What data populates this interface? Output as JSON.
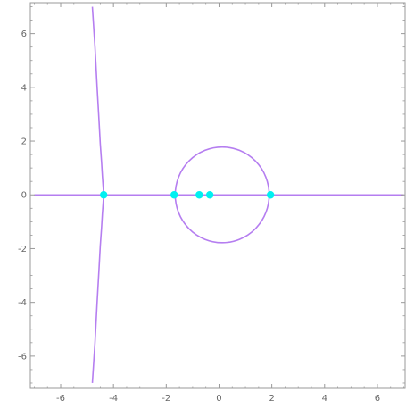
{
  "chart_data": {
    "type": "line",
    "title": "",
    "xlabel": "",
    "ylabel": "",
    "xlim": [
      -7.15,
      7.05
    ],
    "ylim": [
      -7.2,
      7.15
    ],
    "grid": false,
    "frame": true,
    "x_ticks": [
      -6,
      -4,
      -2,
      0,
      2,
      4,
      6
    ],
    "y_ticks": [
      -6,
      -4,
      -2,
      0,
      2,
      4,
      6
    ],
    "x_tick_labels": [
      "-6",
      "-4",
      "-2",
      "0",
      "2",
      "4",
      "6"
    ],
    "y_tick_labels": [
      "-6",
      "-4",
      "-2",
      "0",
      "2",
      "4",
      "6"
    ],
    "curve_color": "#b57ef0",
    "point_color": "#00f0f0",
    "series": [
      {
        "kind": "curve",
        "x": [
          -4.8,
          -4.7,
          -4.62,
          -4.55,
          -4.5,
          -4.45,
          -4.42,
          -4.39,
          -4.37
        ],
        "y": [
          7.0,
          5.5,
          4.0,
          2.8,
          1.9,
          1.2,
          0.7,
          0.3,
          0.0
        ]
      },
      {
        "kind": "curve",
        "x": [
          -4.37,
          -4.39,
          -4.42,
          -4.45,
          -4.5,
          -4.55,
          -4.62,
          -4.7,
          -4.8
        ],
        "y": [
          0.0,
          -0.3,
          -0.7,
          -1.2,
          -1.9,
          -2.8,
          -4.0,
          -5.5,
          -7.0
        ]
      },
      {
        "kind": "line",
        "x": [
          -7.0,
          7.0
        ],
        "y": [
          0.0,
          0.0
        ]
      },
      {
        "kind": "circle",
        "center": [
          0.12,
          0.0
        ],
        "radius": 1.78
      },
      {
        "kind": "points",
        "x": [
          -4.37,
          -1.7,
          -0.75,
          -0.35,
          1.95
        ],
        "y": [
          0.0,
          0.0,
          0.0,
          0.0,
          0.0
        ]
      }
    ]
  }
}
